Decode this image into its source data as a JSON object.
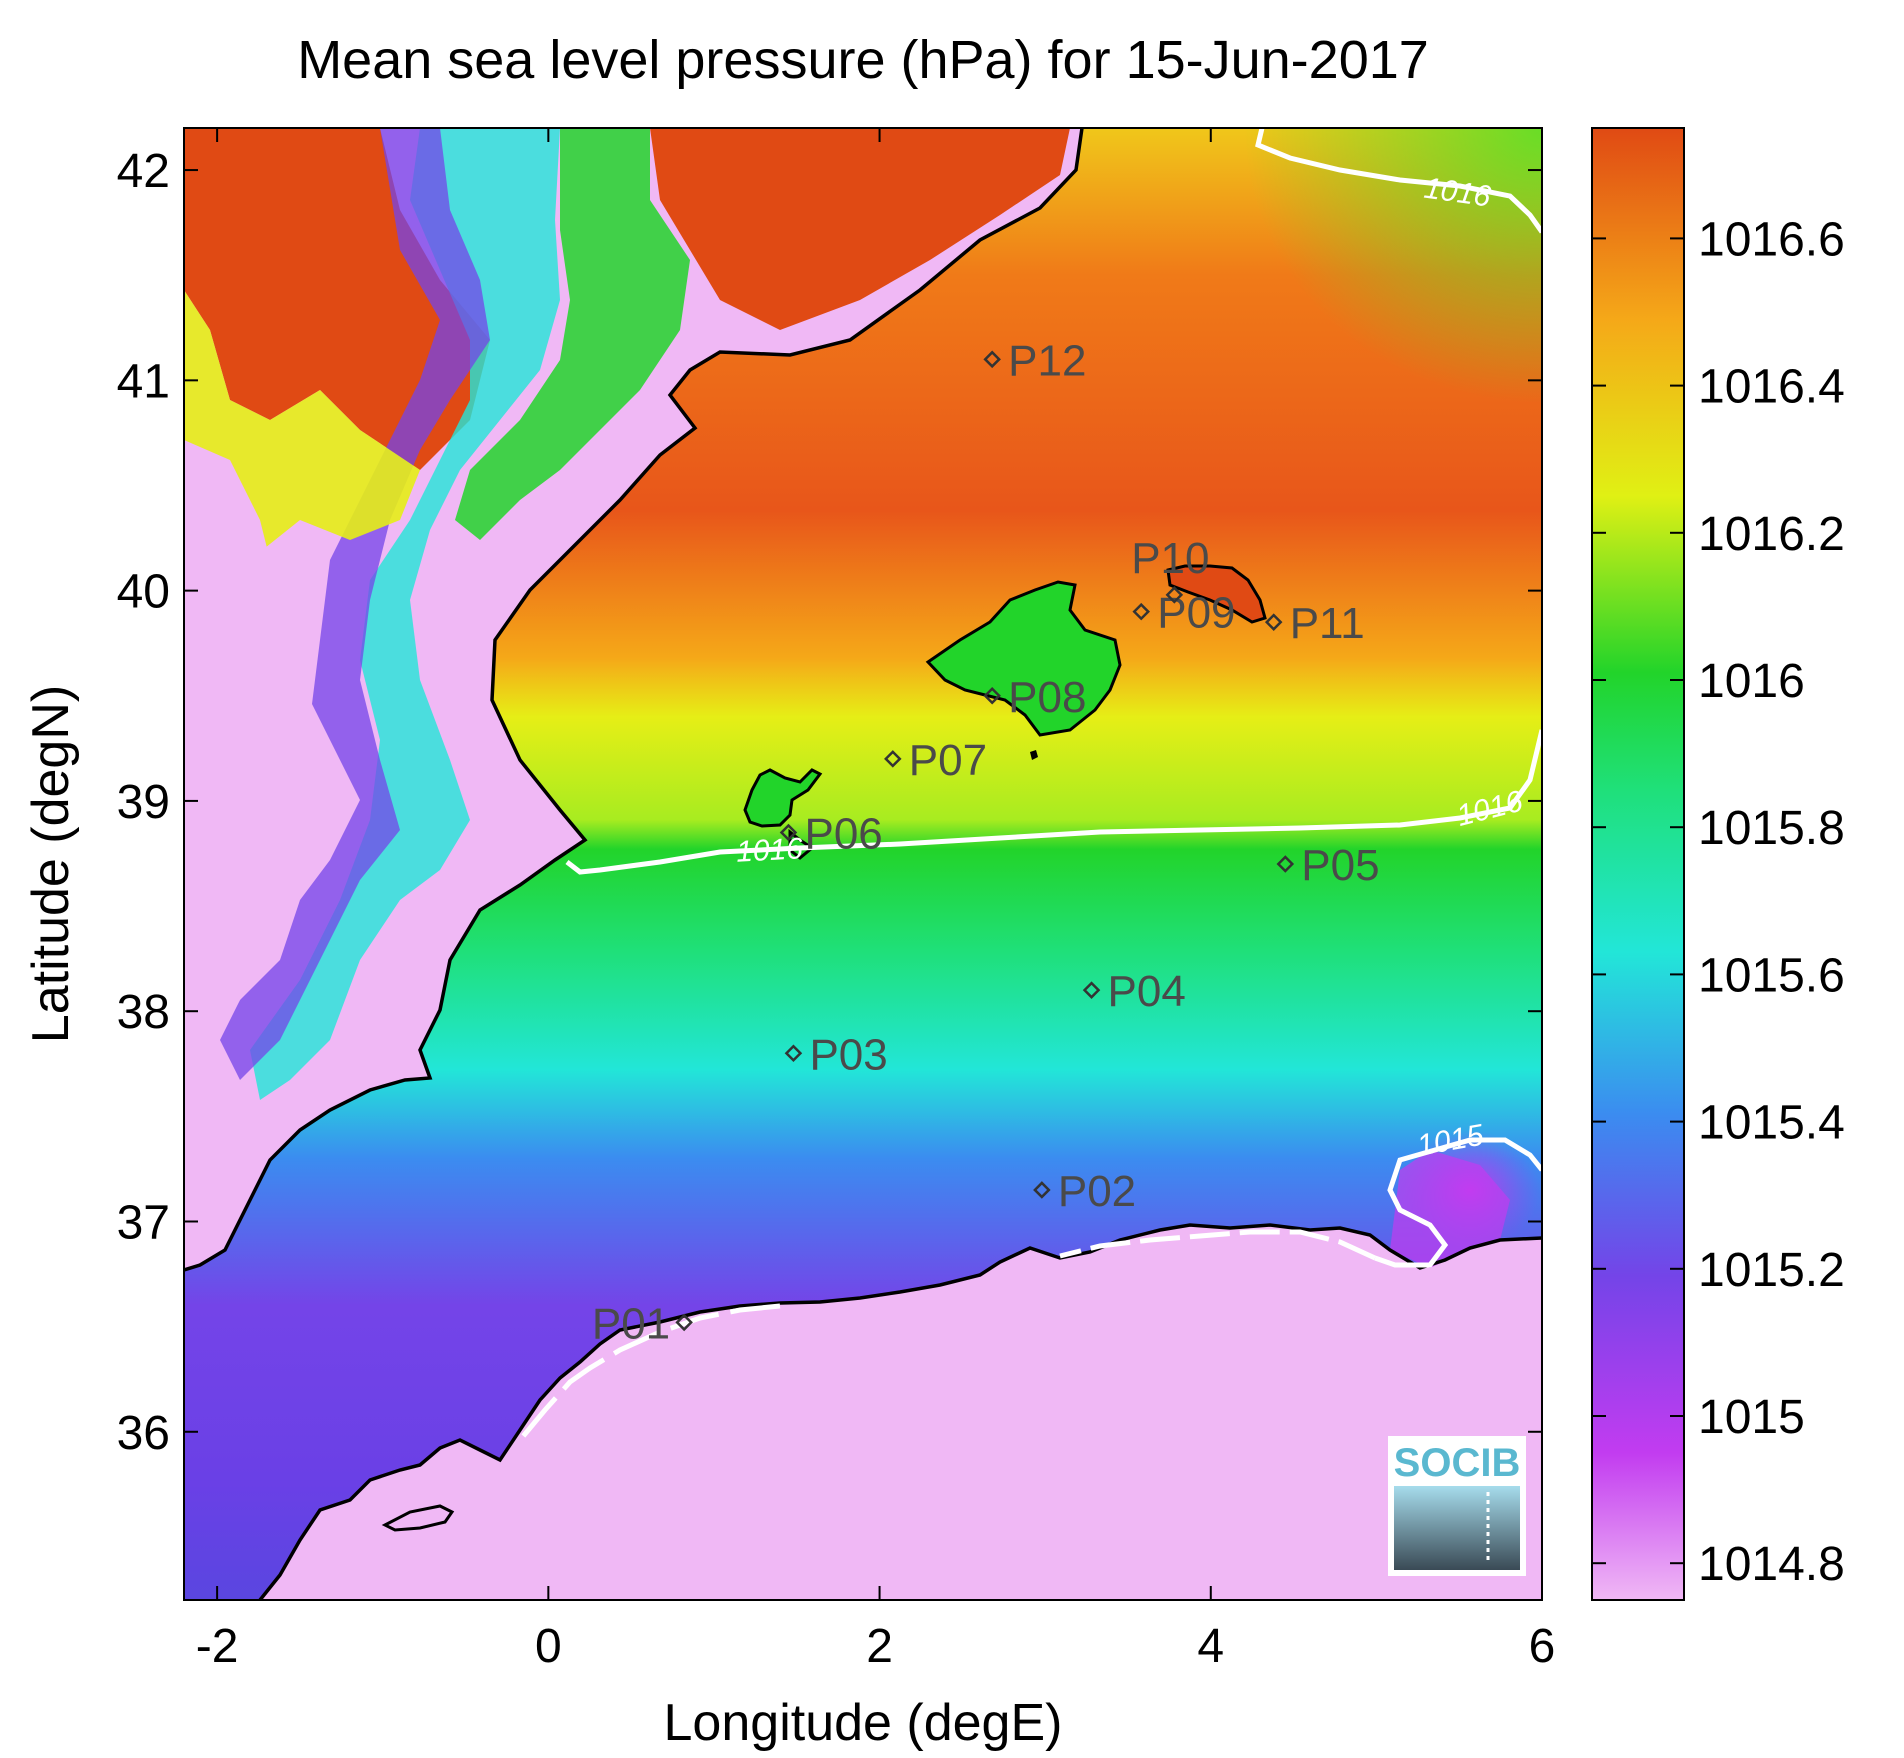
{
  "chart_data": {
    "type": "heatmap",
    "title": "Mean sea level pressure (hPa) for 15-Jun-2017",
    "xlabel": "Longitude (degE)",
    "ylabel": "Latitude (degN)",
    "xlim": [
      -2.2,
      6.0
    ],
    "ylim": [
      35.2,
      42.2
    ],
    "xticks": [
      -2,
      0,
      2,
      4,
      6
    ],
    "yticks": [
      36,
      37,
      38,
      39,
      40,
      41,
      42
    ],
    "colorbar": {
      "range": [
        1014.75,
        1016.75
      ],
      "ticks": [
        1014.8,
        1015,
        1015.2,
        1015.4,
        1015.6,
        1015.8,
        1016,
        1016.2,
        1016.4,
        1016.6
      ],
      "tick_labels": [
        "1014.8",
        "1015",
        "1015.2",
        "1015.4",
        "1015.6",
        "1015.8",
        "1016",
        "1016.2",
        "1016.4",
        "1016.6"
      ],
      "colormap": [
        "#f0b8f5",
        "#c23cf0",
        "#7444e8",
        "#3b8cf0",
        "#22e6d8",
        "#1fe07a",
        "#22d42a",
        "#e0f014",
        "#f5a818",
        "#e04a14"
      ]
    },
    "contours": [
      {
        "label": "1016",
        "level": 1016
      },
      {
        "label": "1015",
        "level": 1015
      }
    ],
    "stations": [
      {
        "name": "P01",
        "lon": 0.82,
        "lat": 36.52
      },
      {
        "name": "P02",
        "lon": 2.98,
        "lat": 37.15
      },
      {
        "name": "P03",
        "lon": 1.48,
        "lat": 37.8
      },
      {
        "name": "P04",
        "lon": 3.28,
        "lat": 38.1
      },
      {
        "name": "P05",
        "lon": 4.45,
        "lat": 38.7
      },
      {
        "name": "P06",
        "lon": 1.45,
        "lat": 38.85
      },
      {
        "name": "P07",
        "lon": 2.08,
        "lat": 39.2
      },
      {
        "name": "P08",
        "lon": 2.68,
        "lat": 39.5
      },
      {
        "name": "P09",
        "lon": 3.58,
        "lat": 39.9
      },
      {
        "name": "P10",
        "lon": 3.78,
        "lat": 39.98
      },
      {
        "name": "P11",
        "lon": 4.38,
        "lat": 39.85
      },
      {
        "name": "P12",
        "lon": 2.68,
        "lat": 41.1
      }
    ]
  },
  "logo": {
    "text": "SOCIB"
  }
}
